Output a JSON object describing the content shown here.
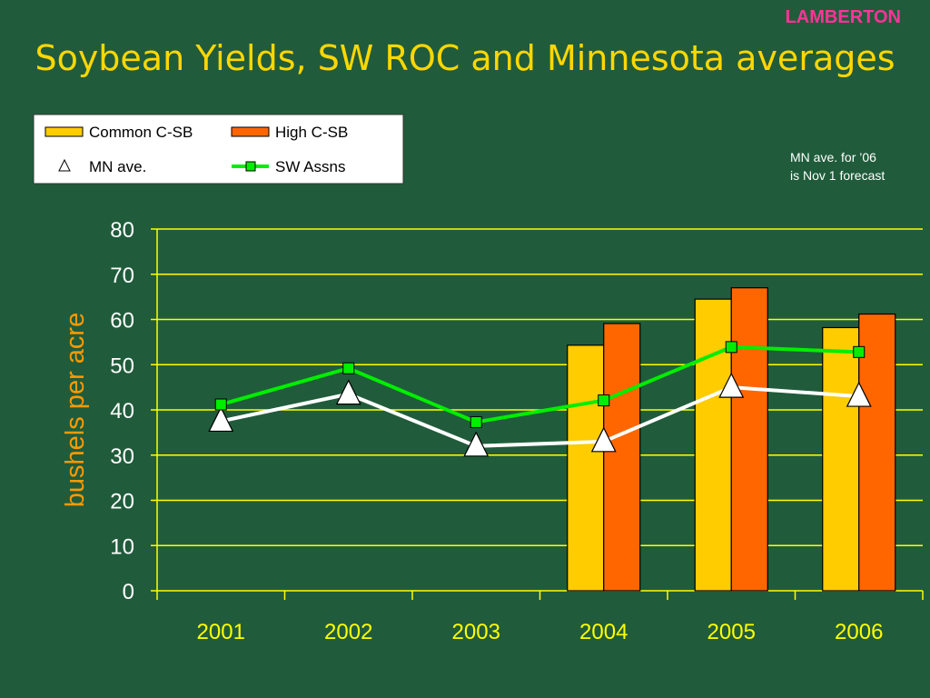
{
  "corner_label": "LAMBERTON",
  "title": "Soybean Yields, SW ROC and Minnesota averages",
  "note": [
    "MN ave. for ’06",
    "is Nov 1 forecast"
  ],
  "colors": {
    "background": "#205c3b",
    "title": "#ffd700",
    "axis": "#ffff00",
    "ylabel": "#ff9900",
    "common": "#ffcc00",
    "high": "#ff6600",
    "mn": "#ffffff",
    "sw": "#00ee00"
  },
  "chart_data": {
    "type": "bar",
    "categories": [
      "2001",
      "2002",
      "2003",
      "2004",
      "2005",
      "2006"
    ],
    "ylabel": "bushels per acre",
    "xlabel": "",
    "ylim": [
      0,
      80
    ],
    "yticks": [
      0,
      10,
      20,
      30,
      40,
      50,
      60,
      70,
      80
    ],
    "grid": true,
    "legend_position": "top-left",
    "series": [
      {
        "name": "Common C-SB",
        "kind": "bar",
        "values": [
          null,
          null,
          null,
          54.3,
          64.5,
          58.2
        ]
      },
      {
        "name": "High C-SB",
        "kind": "bar",
        "values": [
          null,
          null,
          null,
          59.1,
          67.0,
          61.2
        ]
      },
      {
        "name": "MN ave.",
        "kind": "line",
        "marker": "triangle",
        "values": [
          37.5,
          43.5,
          32.0,
          33.0,
          45.0,
          43.0
        ]
      },
      {
        "name": "SW Assns",
        "kind": "line",
        "marker": "square",
        "values": [
          41.2,
          49.2,
          37.3,
          42.1,
          53.9,
          52.8
        ]
      }
    ]
  }
}
